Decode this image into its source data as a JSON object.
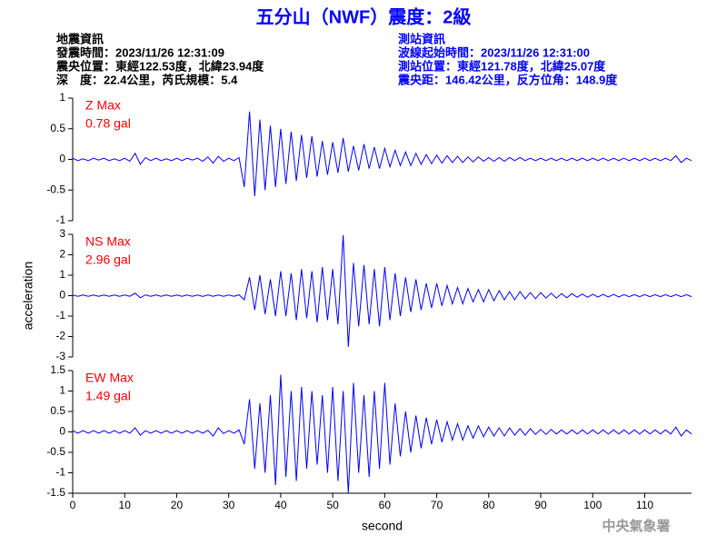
{
  "header": {
    "title": "五分山（NWF）震度：2級",
    "quake_info": [
      "地震資訊",
      "發震時間：2023/11/26 12:31:09",
      "震央位置：東經122.53度，北緯23.94度",
      "深　度：22.4公里，芮氏規模：5.4"
    ],
    "station_info": [
      "測站資訊",
      "波線起始時間：2023/11/26 12:31:00",
      "測站位置：東經121.78度，北緯25.07度",
      "震央距：146.42公里，反方位角：148.9度"
    ],
    "footer": "中央氣象署"
  },
  "chart_data": [
    {
      "type": "line",
      "annotation": [
        "Z Max",
        "0.78 gal"
      ],
      "color": "#0000ff",
      "xlim": [
        0,
        119
      ],
      "ylim": [
        -1,
        1
      ],
      "yticks": [
        -1,
        -0.5,
        0,
        0.5,
        1
      ],
      "x": [
        0,
        1,
        2,
        3,
        4,
        5,
        6,
        7,
        8,
        9,
        10,
        11,
        12,
        13,
        14,
        15,
        16,
        17,
        18,
        19,
        20,
        21,
        22,
        23,
        24,
        25,
        26,
        27,
        28,
        29,
        30,
        31,
        32,
        33,
        34,
        35,
        36,
        37,
        38,
        39,
        40,
        41,
        42,
        43,
        44,
        45,
        46,
        47,
        48,
        49,
        50,
        51,
        52,
        53,
        54,
        55,
        56,
        57,
        58,
        59,
        60,
        61,
        62,
        63,
        64,
        65,
        66,
        67,
        68,
        69,
        70,
        71,
        72,
        73,
        74,
        75,
        76,
        77,
        78,
        79,
        80,
        81,
        82,
        83,
        84,
        85,
        86,
        87,
        88,
        89,
        90,
        91,
        92,
        93,
        94,
        95,
        96,
        97,
        98,
        99,
        100,
        101,
        102,
        103,
        104,
        105,
        106,
        107,
        108,
        109,
        110,
        111,
        112,
        113,
        114,
        115,
        116,
        117,
        118,
        119
      ],
      "values": [
        0.02,
        -0.02,
        0.01,
        -0.02,
        0.02,
        -0.01,
        0.02,
        -0.02,
        0.01,
        -0.02,
        0.02,
        -0.03,
        0.1,
        -0.08,
        0.03,
        -0.02,
        0.02,
        -0.02,
        0.01,
        -0.02,
        0.02,
        -0.02,
        0.02,
        -0.01,
        0.02,
        -0.03,
        0.04,
        -0.06,
        0.05,
        -0.03,
        0.02,
        -0.02,
        0.03,
        -0.45,
        0.78,
        -0.6,
        0.65,
        -0.5,
        0.55,
        -0.45,
        0.5,
        -0.4,
        0.45,
        -0.35,
        0.4,
        -0.3,
        0.38,
        -0.28,
        0.3,
        -0.25,
        0.28,
        -0.22,
        0.35,
        -0.2,
        0.22,
        -0.18,
        0.25,
        -0.15,
        0.2,
        -0.15,
        0.18,
        -0.12,
        0.15,
        -0.1,
        0.12,
        -0.1,
        0.1,
        -0.08,
        0.08,
        -0.07,
        0.07,
        -0.06,
        0.06,
        -0.05,
        0.05,
        -0.05,
        0.04,
        -0.04,
        0.04,
        -0.03,
        0.03,
        -0.03,
        0.03,
        -0.03,
        0.03,
        -0.02,
        0.03,
        -0.02,
        0.02,
        -0.02,
        0.02,
        -0.02,
        0.02,
        -0.02,
        0.02,
        -0.02,
        0.02,
        -0.02,
        0.02,
        -0.02,
        0.02,
        -0.02,
        0.02,
        -0.02,
        0.02,
        -0.02,
        0.02,
        -0.02,
        0.02,
        -0.02,
        0.02,
        -0.02,
        0.02,
        -0.02,
        0.02,
        -0.02,
        0.06,
        -0.05,
        0.02,
        -0.02
      ]
    },
    {
      "type": "line",
      "annotation": [
        "NS Max",
        "2.96 gal"
      ],
      "color": "#0000ff",
      "ylabel": "acceleration",
      "xlim": [
        0,
        119
      ],
      "ylim": [
        -3,
        3
      ],
      "yticks": [
        -3,
        -2,
        -1,
        0,
        1,
        2,
        3
      ],
      "x": [
        0,
        1,
        2,
        3,
        4,
        5,
        6,
        7,
        8,
        9,
        10,
        11,
        12,
        13,
        14,
        15,
        16,
        17,
        18,
        19,
        20,
        21,
        22,
        23,
        24,
        25,
        26,
        27,
        28,
        29,
        30,
        31,
        32,
        33,
        34,
        35,
        36,
        37,
        38,
        39,
        40,
        41,
        42,
        43,
        44,
        45,
        46,
        47,
        48,
        49,
        50,
        51,
        52,
        53,
        54,
        55,
        56,
        57,
        58,
        59,
        60,
        61,
        62,
        63,
        64,
        65,
        66,
        67,
        68,
        69,
        70,
        71,
        72,
        73,
        74,
        75,
        76,
        77,
        78,
        79,
        80,
        81,
        82,
        83,
        84,
        85,
        86,
        87,
        88,
        89,
        90,
        91,
        92,
        93,
        94,
        95,
        96,
        97,
        98,
        99,
        100,
        101,
        102,
        103,
        104,
        105,
        106,
        107,
        108,
        109,
        110,
        111,
        112,
        113,
        114,
        115,
        116,
        117,
        118,
        119
      ],
      "values": [
        0.03,
        -0.03,
        0.03,
        -0.03,
        0.03,
        -0.03,
        0.03,
        -0.03,
        0.03,
        -0.03,
        0.03,
        -0.03,
        0.12,
        -0.1,
        0.04,
        -0.03,
        0.03,
        -0.03,
        0.03,
        -0.03,
        0.03,
        -0.03,
        0.03,
        -0.03,
        0.03,
        -0.04,
        0.04,
        -0.03,
        0.03,
        -0.03,
        0.03,
        -0.03,
        0.04,
        -0.2,
        0.9,
        -0.7,
        1.0,
        -0.9,
        0.8,
        -1.0,
        1.2,
        -1.0,
        1.1,
        -1.2,
        1.3,
        -1.1,
        1.2,
        -1.3,
        1.4,
        -1.2,
        1.3,
        -1.4,
        2.96,
        -2.5,
        1.6,
        -1.5,
        1.5,
        -1.4,
        1.3,
        -1.5,
        1.4,
        -1.2,
        1.1,
        -1.0,
        0.9,
        -0.8,
        0.8,
        -0.7,
        0.6,
        -0.6,
        0.6,
        -0.5,
        0.5,
        -0.4,
        0.4,
        -0.4,
        0.35,
        -0.3,
        0.3,
        -0.3,
        0.3,
        -0.25,
        0.25,
        -0.2,
        0.2,
        -0.2,
        0.2,
        -0.15,
        0.15,
        -0.15,
        0.15,
        -0.12,
        0.12,
        -0.12,
        0.1,
        -0.1,
        0.1,
        -0.08,
        0.08,
        -0.08,
        0.07,
        -0.07,
        0.06,
        -0.06,
        0.06,
        -0.06,
        0.05,
        -0.05,
        0.05,
        -0.05,
        0.05,
        -0.05,
        0.05,
        -0.05,
        0.05,
        -0.05,
        0.05,
        -0.05,
        0.05,
        -0.05
      ]
    },
    {
      "type": "line",
      "annotation": [
        "EW Max",
        "1.49 gal"
      ],
      "color": "#0000ff",
      "xlabel": "second",
      "xlim": [
        0,
        119
      ],
      "xticks": [
        0,
        10,
        20,
        30,
        40,
        50,
        60,
        70,
        80,
        90,
        100,
        110
      ],
      "ylim": [
        -1.5,
        1.5
      ],
      "yticks": [
        -1.5,
        -1,
        -0.5,
        0,
        0.5,
        1,
        1.5
      ],
      "x": [
        0,
        1,
        2,
        3,
        4,
        5,
        6,
        7,
        8,
        9,
        10,
        11,
        12,
        13,
        14,
        15,
        16,
        17,
        18,
        19,
        20,
        21,
        22,
        23,
        24,
        25,
        26,
        27,
        28,
        29,
        30,
        31,
        32,
        33,
        34,
        35,
        36,
        37,
        38,
        39,
        40,
        41,
        42,
        43,
        44,
        45,
        46,
        47,
        48,
        49,
        50,
        51,
        52,
        53,
        54,
        55,
        56,
        57,
        58,
        59,
        60,
        61,
        62,
        63,
        64,
        65,
        66,
        67,
        68,
        69,
        70,
        71,
        72,
        73,
        74,
        75,
        76,
        77,
        78,
        79,
        80,
        81,
        82,
        83,
        84,
        85,
        86,
        87,
        88,
        89,
        90,
        91,
        92,
        93,
        94,
        95,
        96,
        97,
        98,
        99,
        100,
        101,
        102,
        103,
        104,
        105,
        106,
        107,
        108,
        109,
        110,
        111,
        112,
        113,
        114,
        115,
        116,
        117,
        118,
        119
      ],
      "values": [
        0.03,
        -0.03,
        0.03,
        -0.03,
        0.03,
        -0.03,
        0.03,
        -0.03,
        0.03,
        -0.03,
        0.03,
        -0.03,
        0.1,
        -0.08,
        0.03,
        -0.03,
        0.03,
        -0.03,
        0.03,
        -0.03,
        0.03,
        -0.03,
        0.03,
        -0.03,
        0.03,
        -0.03,
        0.04,
        -0.1,
        0.1,
        -0.04,
        0.03,
        -0.03,
        0.05,
        -0.3,
        0.8,
        -0.9,
        0.7,
        -1.0,
        0.9,
        -1.3,
        1.4,
        -1.1,
        1.0,
        -1.2,
        1.1,
        -0.9,
        1.0,
        -0.8,
        0.9,
        -1.0,
        1.1,
        -1.2,
        1.0,
        -1.5,
        1.2,
        -1.0,
        0.9,
        -1.1,
        1.0,
        -0.9,
        1.2,
        -0.8,
        0.7,
        -0.6,
        0.5,
        -0.5,
        0.4,
        -0.4,
        0.35,
        -0.3,
        0.3,
        -0.25,
        0.25,
        -0.2,
        0.2,
        -0.2,
        0.15,
        -0.15,
        0.15,
        -0.12,
        0.12,
        -0.1,
        0.1,
        -0.1,
        0.1,
        -0.08,
        0.08,
        -0.08,
        0.08,
        -0.06,
        0.06,
        -0.06,
        0.06,
        -0.05,
        0.05,
        -0.05,
        0.05,
        -0.05,
        0.05,
        -0.05,
        0.05,
        -0.05,
        0.05,
        -0.05,
        0.05,
        -0.05,
        0.05,
        -0.05,
        0.05,
        -0.05,
        0.05,
        -0.05,
        0.05,
        -0.05,
        0.05,
        -0.05,
        0.12,
        -0.1,
        0.05,
        -0.05
      ]
    }
  ]
}
